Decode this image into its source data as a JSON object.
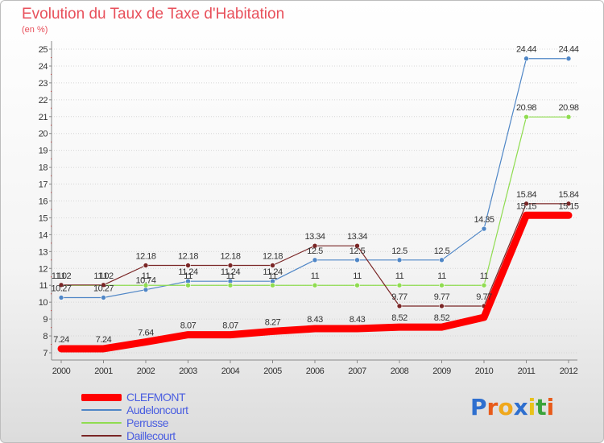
{
  "chart_data": {
    "type": "line",
    "title": "Evolution du Taux de Taxe d'Habitation",
    "subtitle": "(en %)",
    "x": [
      "2000",
      "2001",
      "2002",
      "2003",
      "2004",
      "2005",
      "2006",
      "2007",
      "2008",
      "2009",
      "2010",
      "2011",
      "2012"
    ],
    "ylim": [
      7,
      25
    ],
    "yticks": [
      "7",
      "8",
      "9",
      "10",
      "11",
      "12",
      "13",
      "14",
      "15",
      "16",
      "17",
      "18",
      "19",
      "20",
      "21",
      "22",
      "23",
      "24",
      "25"
    ],
    "grid": "horizontal, dotted",
    "legend": "bottom-left",
    "series": [
      {
        "name": "CLEFMONT",
        "color": "#ff0000",
        "emphasis": true,
        "values": [
          7.24,
          7.24,
          7.64,
          8.07,
          8.07,
          8.27,
          8.43,
          8.43,
          8.52,
          8.52,
          9.1,
          15.15,
          15.15
        ],
        "labels": [
          "7.24",
          "7.24",
          "7.64",
          "8.07",
          "8.07",
          "8.27",
          "8.43",
          "8.43",
          "8.52",
          "8.52",
          "",
          "15.15",
          "15.15"
        ]
      },
      {
        "name": "Audeloncourt",
        "color": "#4f86c6",
        "values": [
          10.27,
          10.27,
          10.74,
          11.24,
          11.24,
          11.24,
          12.5,
          12.5,
          12.5,
          12.5,
          14.35,
          24.44,
          24.44
        ],
        "labels": [
          "10.27",
          "10.27",
          "10.74",
          "11.24",
          "11.24",
          "11.24",
          "12.5",
          "12.5",
          "12.5",
          "12.5",
          "14.35",
          "24.44",
          "24.44"
        ]
      },
      {
        "name": "Perrusse",
        "color": "#8fdc50",
        "values": [
          11,
          11,
          11,
          11,
          11,
          11,
          11,
          11,
          11,
          11,
          11,
          20.98,
          20.98
        ],
        "labels": [
          "11",
          "11",
          "11",
          "11",
          "11",
          "11",
          "11",
          "11",
          "11",
          "11",
          "11",
          "20.98",
          "20.98"
        ]
      },
      {
        "name": "Daillecourt",
        "color": "#7a2626",
        "values": [
          11.02,
          11.02,
          12.18,
          12.18,
          12.18,
          12.18,
          13.34,
          13.34,
          9.77,
          9.77,
          9.77,
          15.84,
          15.84
        ],
        "labels": [
          "11.02",
          "11.02",
          "12.18",
          "12.18",
          "12.18",
          "12.18",
          "13.34",
          "13.34",
          "9.77",
          "9.77",
          "9.77",
          "15.84",
          "15.84"
        ]
      }
    ]
  },
  "brand": {
    "letters": [
      "P",
      "r",
      "o",
      "x",
      "i",
      "t",
      "i"
    ],
    "colors": [
      "#2e6fcf",
      "#e85b1a",
      "#f0a81c",
      "#2e6fcf",
      "#e8c21a",
      "#3aa33a",
      "#e85b1a"
    ]
  }
}
